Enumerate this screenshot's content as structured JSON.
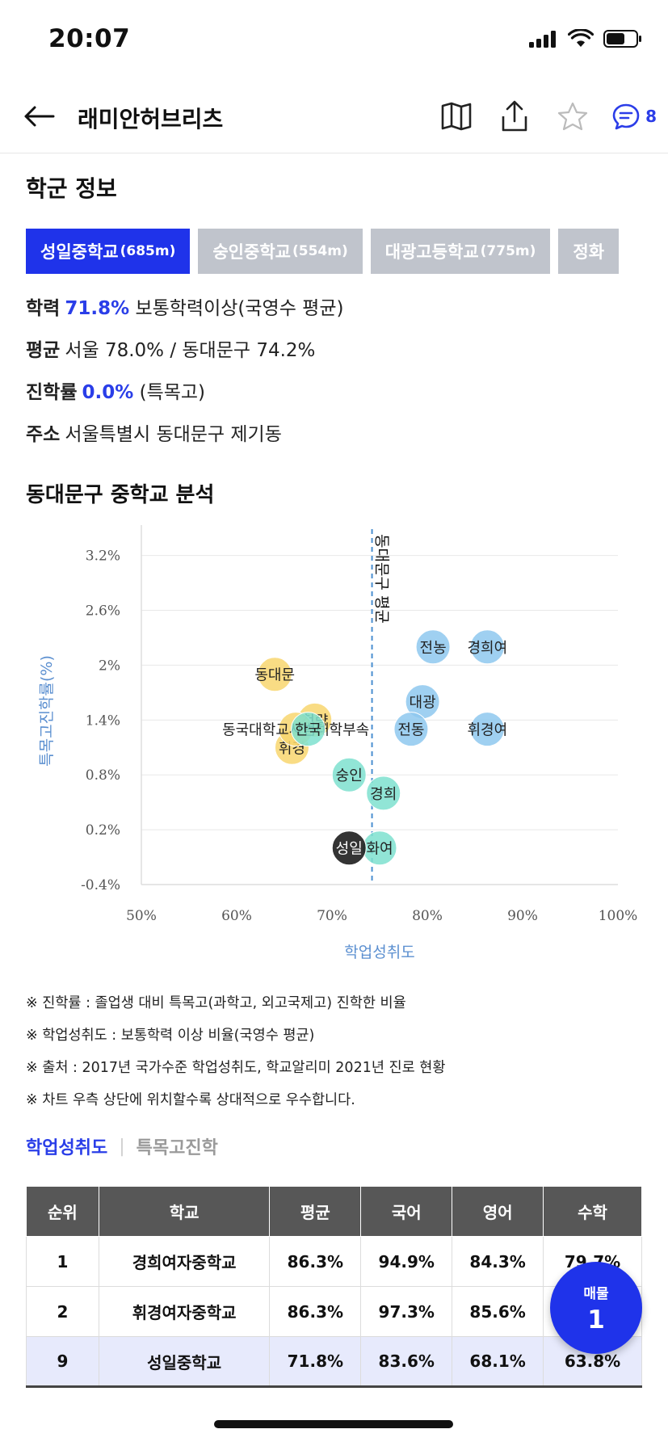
{
  "status": {
    "time": "20:07"
  },
  "header": {
    "title": "래미안허브리츠",
    "chat_count": "8"
  },
  "school_section": {
    "title": "학군 정보",
    "tabs": [
      {
        "name": "성일중학교",
        "distance": "(685m)",
        "active": true
      },
      {
        "name": "숭인중학교",
        "distance": "(554m)",
        "active": false
      },
      {
        "name": "대광고등학교",
        "distance": "(775m)",
        "active": false
      },
      {
        "name": "정화",
        "distance": "",
        "active": false
      }
    ],
    "info": {
      "ability_label": "학력",
      "ability_value": "71.8%",
      "ability_desc": "보통학력이상(국영수 평균)",
      "avg_label": "평균",
      "avg_value": "서울 78.0% / 동대문구 74.2%",
      "rate_label": "진학률",
      "rate_value": "0.0%",
      "rate_desc": "(특목고)",
      "addr_label": "주소",
      "addr_value": "서울특별시 동대문구 제기동"
    }
  },
  "analysis": {
    "title": "동대문구 중학교 분석"
  },
  "chart_data": {
    "type": "scatter",
    "xlabel": "학업성취도",
    "ylabel": "특목고진학률(%)",
    "x_ticks": [
      "50%",
      "60%",
      "70%",
      "80%",
      "90%",
      "100%"
    ],
    "y_ticks": [
      "3.2%",
      "2.6%",
      "2%",
      "1.4%",
      "0.8%",
      "0.2%",
      "-0.4%"
    ],
    "xlim": [
      50,
      100
    ],
    "ylim": [
      -0.4,
      3.4
    ],
    "avg_line": {
      "x": 74.2,
      "label": "동대문구 평균"
    },
    "points": [
      {
        "label": "동대문",
        "x": 64.0,
        "y": 1.9,
        "group": "yellow"
      },
      {
        "label": "청량",
        "x": 68.2,
        "y": 1.4,
        "group": "yellow"
      },
      {
        "label": "휘경",
        "x": 65.8,
        "y": 1.1,
        "group": "yellow"
      },
      {
        "label": "동국대학교사범대학부속",
        "x": 66.2,
        "y": 1.3,
        "group": "yellow"
      },
      {
        "label": "한국",
        "x": 67.5,
        "y": 1.3,
        "group": "green"
      },
      {
        "label": "숭인",
        "x": 71.8,
        "y": 0.8,
        "group": "green"
      },
      {
        "label": "경희",
        "x": 75.4,
        "y": 0.6,
        "group": "green"
      },
      {
        "label": "화여",
        "x": 75.0,
        "y": 0.0,
        "group": "green"
      },
      {
        "label": "성일",
        "x": 71.8,
        "y": 0.0,
        "group": "black"
      },
      {
        "label": "전농",
        "x": 80.6,
        "y": 2.2,
        "group": "blue"
      },
      {
        "label": "경희여",
        "x": 86.3,
        "y": 2.2,
        "group": "blue"
      },
      {
        "label": "대광",
        "x": 79.5,
        "y": 1.6,
        "group": "blue"
      },
      {
        "label": "전동",
        "x": 78.3,
        "y": 1.3,
        "group": "blue"
      },
      {
        "label": "휘경여",
        "x": 86.3,
        "y": 1.3,
        "group": "blue"
      }
    ],
    "colors": {
      "yellow": "#f8d66e",
      "green": "#7ee0cf",
      "blue": "#8ec8ef",
      "black": "#111111",
      "avg_line": "#4a8fd0"
    }
  },
  "notes": [
    "※ 진학률 : 졸업생 대비 특목고(과학고, 외고국제고) 진학한 비율",
    "※ 학업성취도 : 보통학력 이상 비율(국영수 평균)",
    "※ 출처 : 2017년 국가수준 학업성취도, 학교알리미 2021년 진로 현황",
    "※ 차트 우측 상단에 위치할수록 상대적으로 우수합니다."
  ],
  "sub_tabs": {
    "active": "학업성취도",
    "inactive": "특목고진학"
  },
  "table": {
    "headers": [
      "순위",
      "학교",
      "평균",
      "국어",
      "영어",
      "수학"
    ],
    "rows": [
      [
        "1",
        "경희여자중학교",
        "86.3%",
        "94.9%",
        "84.3%",
        "79.7%"
      ],
      [
        "2",
        "휘경여자중학교",
        "86.3%",
        "97.3%",
        "85.6%",
        ""
      ],
      [
        "9",
        "성일중학교",
        "71.8%",
        "83.6%",
        "68.1%",
        "63.8%"
      ]
    ]
  },
  "fab": {
    "label": "매물",
    "count": "1"
  }
}
